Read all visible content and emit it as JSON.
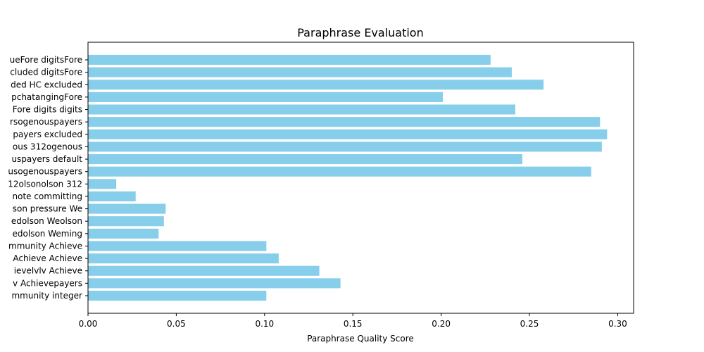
{
  "chart_data": {
    "type": "bar",
    "orientation": "horizontal",
    "title": "Paraphrase Evaluation",
    "xlabel": "Paraphrase Quality Score",
    "ylabel": "",
    "xlim": [
      0,
      0.309
    ],
    "xticks": [
      "0.00",
      "0.05",
      "0.10",
      "0.15",
      "0.20",
      "0.25",
      "0.30"
    ],
    "grid": false,
    "bar_color": "#87ceeb",
    "categories": [
      "ueFore digitsFore",
      "cluded digitsFore",
      "ded HC excluded",
      "pchatangingFore",
      "Fore digits digits",
      "rsogenouspayers",
      "payers excluded",
      "ous 312ogenous",
      "uspayers default",
      "usogenouspayers",
      "12olsonolson 312",
      "note committing",
      "son pressure We",
      "edolson Weolson",
      "edolson Weming",
      "mmunity Achieve",
      "Achieve Achieve",
      "ievelvlv Achieve",
      "v Achievepayers",
      "mmunity integer"
    ],
    "values": [
      0.228,
      0.24,
      0.258,
      0.201,
      0.242,
      0.29,
      0.294,
      0.291,
      0.246,
      0.285,
      0.016,
      0.027,
      0.044,
      0.043,
      0.04,
      0.101,
      0.108,
      0.131,
      0.143,
      0.101
    ]
  }
}
